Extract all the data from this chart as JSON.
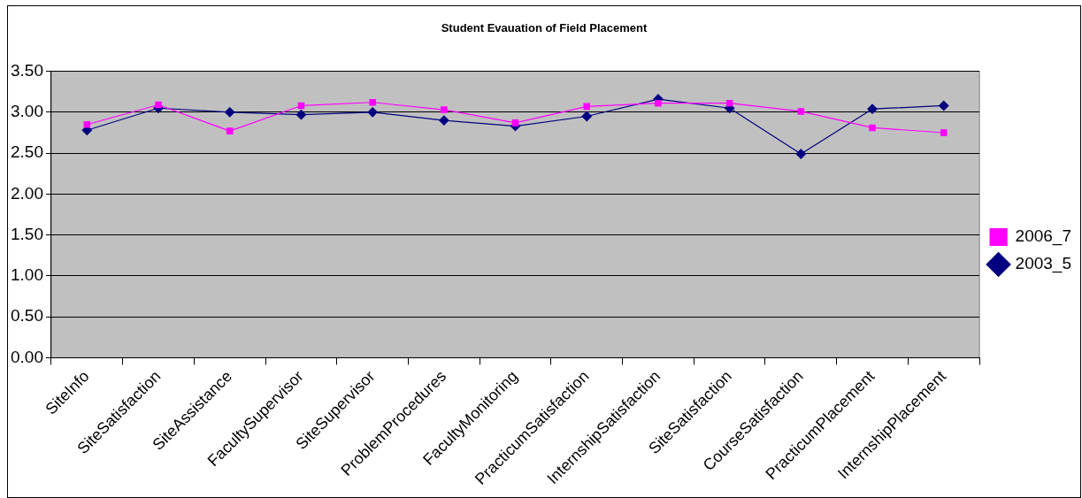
{
  "chart_data": {
    "type": "line",
    "title": "Student Evauation of Field Placement",
    "categories": [
      "SiteInfo",
      "SiteSatisfaction",
      "SiteAssistance",
      "FacultySupervisor",
      "SiteSupervisor",
      "ProblemProcedures",
      "FacultyMonitoring",
      "PracticumSatisfaction",
      "InternshipSatisfaction",
      "SiteSatisfaction",
      "CourseSatisfaction",
      "PracticumPlacement",
      "InternshipPlacement"
    ],
    "series": [
      {
        "name": "2003_5",
        "color": "#000080",
        "marker": "diamond",
        "values": [
          2.78,
          3.05,
          3.0,
          2.97,
          3.0,
          2.9,
          2.83,
          2.95,
          3.16,
          3.05,
          2.49,
          3.04,
          3.08
        ]
      },
      {
        "name": "2006_7",
        "color": "#ff00ff",
        "marker": "square",
        "values": [
          2.85,
          3.09,
          2.77,
          3.08,
          3.12,
          3.03,
          2.87,
          3.07,
          3.11,
          3.11,
          3.01,
          2.81,
          2.75
        ]
      }
    ],
    "ylim": [
      0,
      3.5
    ],
    "yticks": [
      {
        "value": 0,
        "label": "0.00"
      },
      {
        "value": 0.5,
        "label": "0.50"
      },
      {
        "value": 1,
        "label": "1.00"
      },
      {
        "value": 1.5,
        "label": "1.50"
      },
      {
        "value": 2,
        "label": "2.00"
      },
      {
        "value": 2.5,
        "label": "2.50"
      },
      {
        "value": 3,
        "label": "3.00"
      },
      {
        "value": 3.5,
        "label": "3.50"
      }
    ],
    "grid": "y",
    "legend": "right"
  }
}
